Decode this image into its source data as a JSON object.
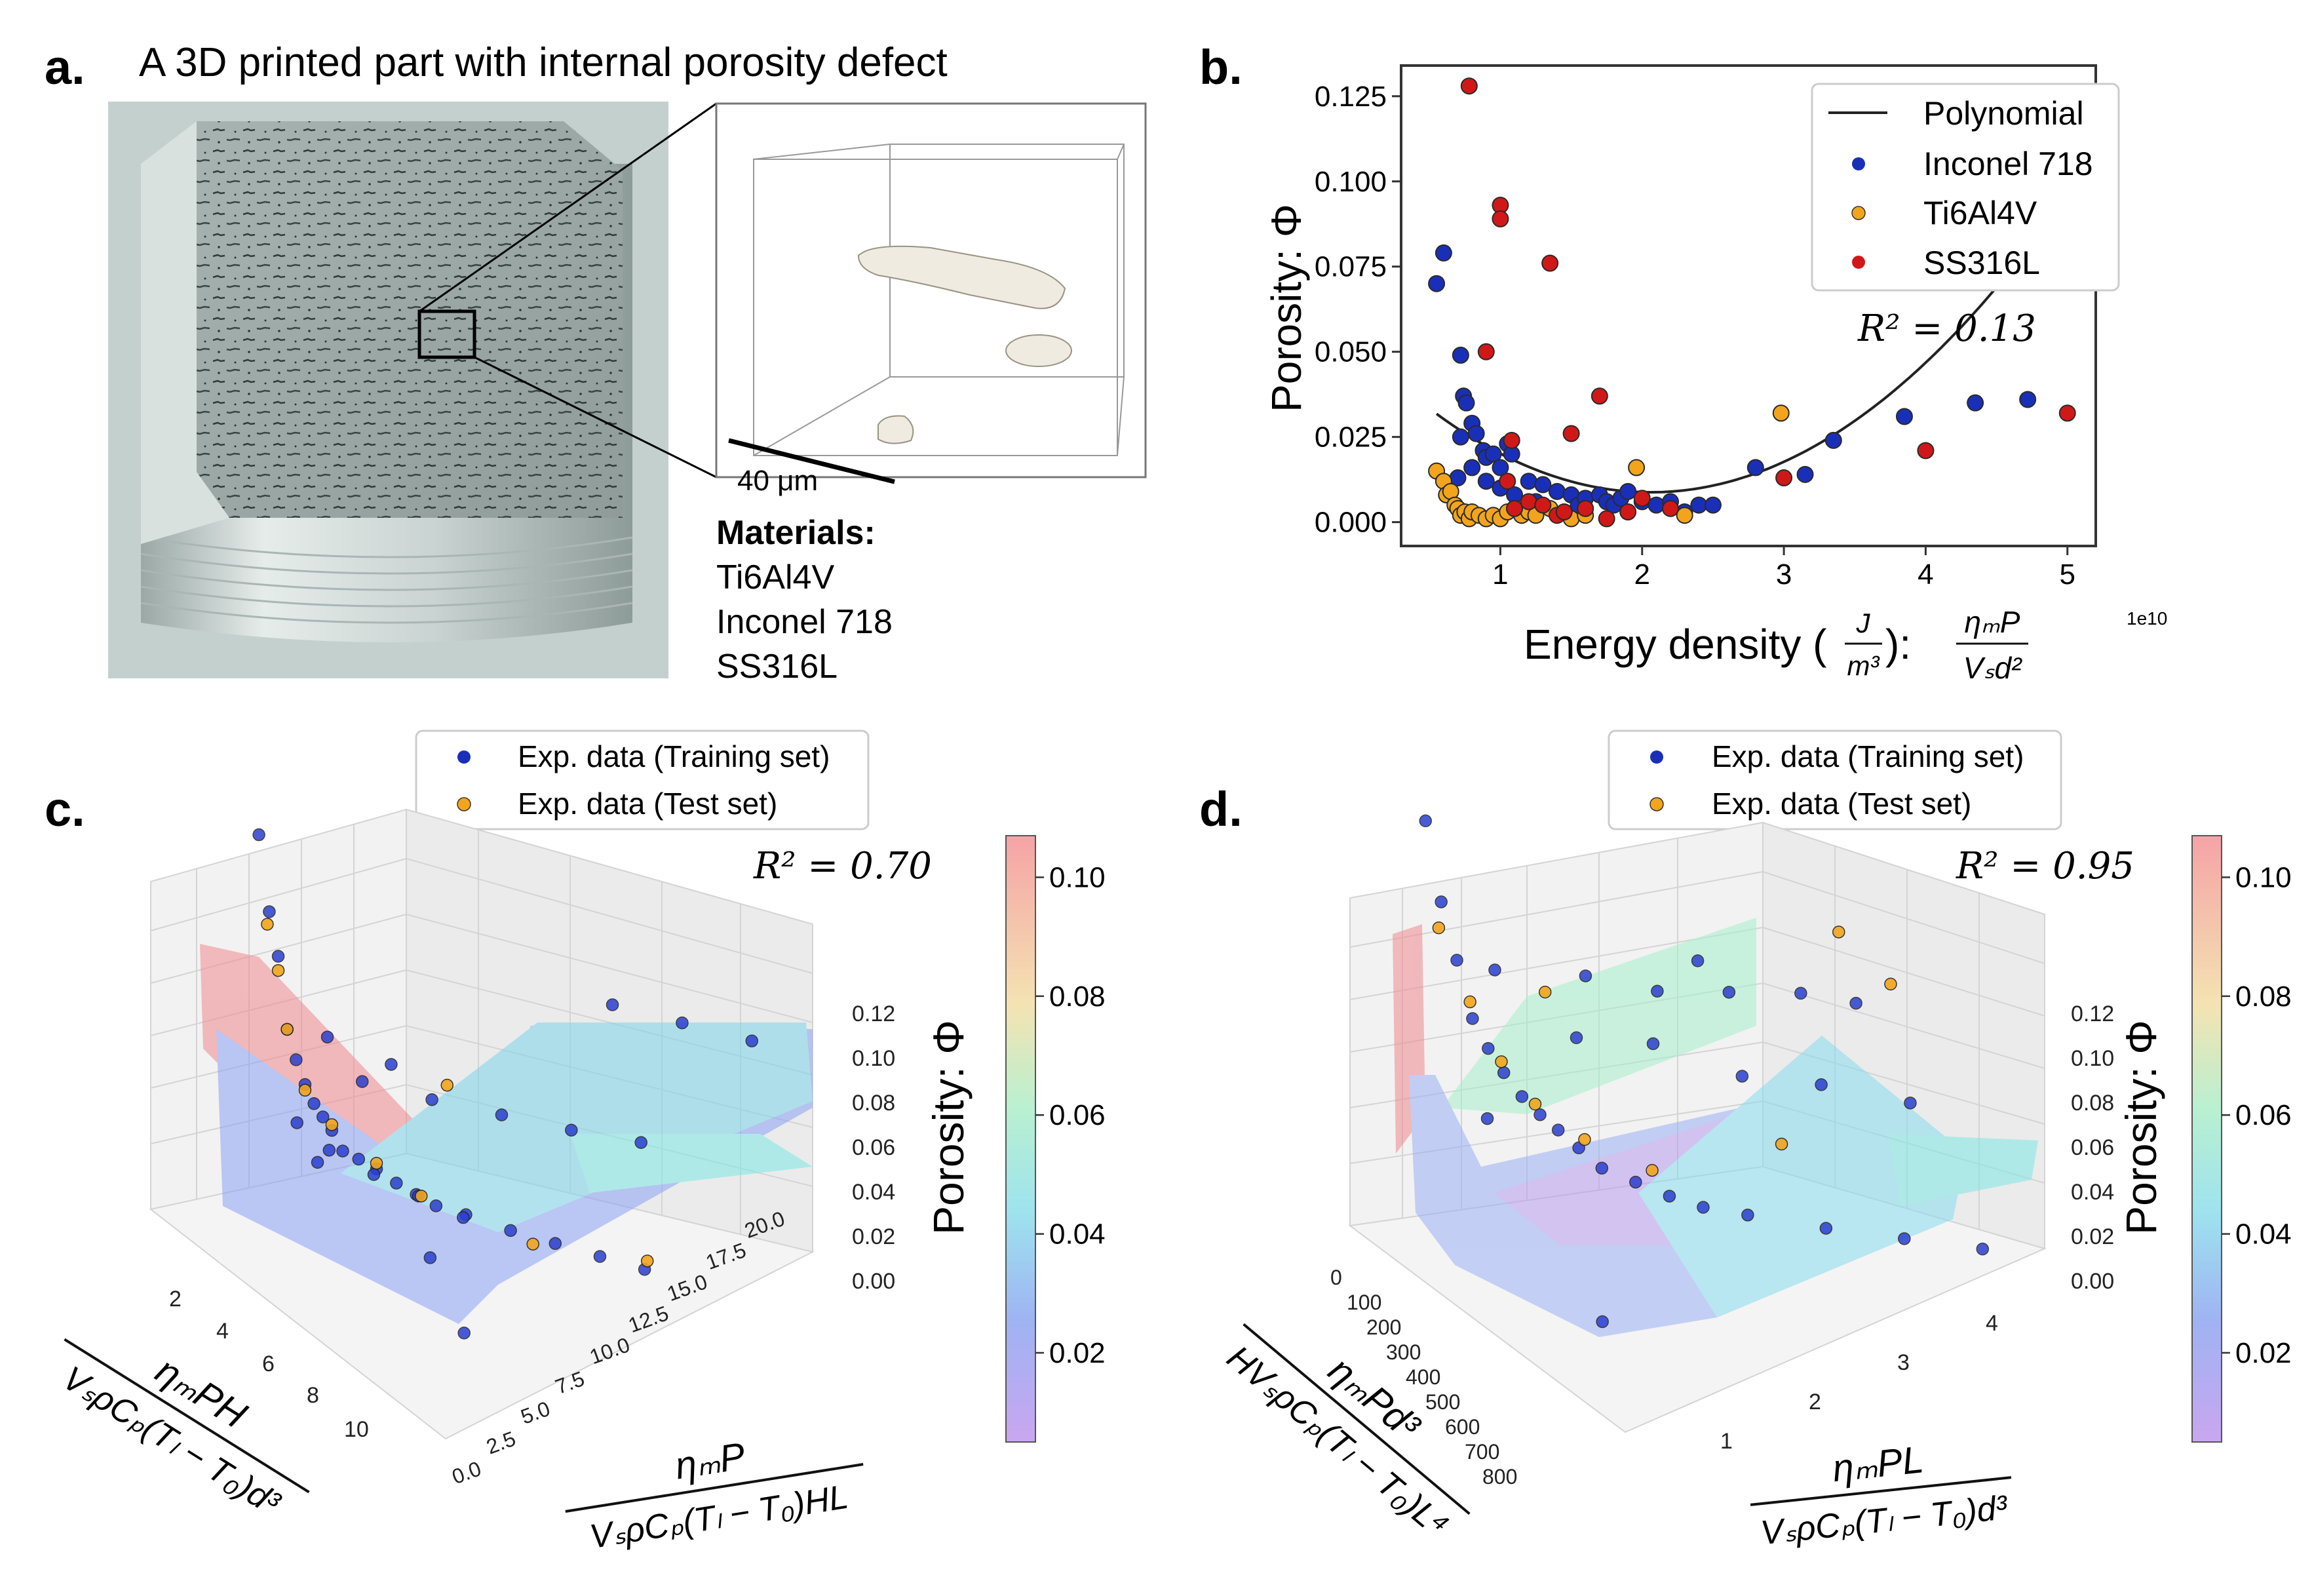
{
  "panel_a": {
    "letter": "a.",
    "title": "A 3D printed part with internal porosity defect",
    "scale_bar": "40  μm",
    "materials_header": "Materials:",
    "materials": [
      "Ti6Al4V",
      "Inconel 718",
      "SS316L"
    ]
  },
  "chart_data": [
    {
      "panel": "b.",
      "type": "scatter",
      "xlabel_prefix": "Energy density (",
      "xlabel_frac_num": "J",
      "xlabel_frac_den": "m³",
      "xlabel_sep": "):",
      "xlabel_expr_num": "ηₘP",
      "xlabel_expr_den": "Vₛd²",
      "x_scale": "1e10",
      "ylabel": "Porosity: Φ",
      "xlim": [
        0.3,
        5.2
      ],
      "ylim": [
        -0.007,
        0.134
      ],
      "xticks": [
        "1",
        "2",
        "3",
        "4",
        "5"
      ],
      "xtick_values": [
        1,
        2,
        3,
        4,
        5
      ],
      "yticks": [
        "0.000",
        "0.025",
        "0.050",
        "0.075",
        "0.100",
        "0.125"
      ],
      "ytick_values": [
        0,
        0.025,
        0.05,
        0.075,
        0.1,
        0.125
      ],
      "annotation": "R² = 0.13",
      "legend": [
        "Polynomial",
        "Inconel 718",
        "Ti6Al4V",
        "SS316L"
      ],
      "fit": {
        "name": "Polynomial",
        "color": "#222222",
        "coef": [
          0.0516,
          -0.0416,
          0.0101
        ],
        "x_range": [
          0.55,
          5.0
        ]
      },
      "series": [
        {
          "name": "Inconel 718",
          "color": "#1a2fb8",
          "points": [
            [
              0.55,
              0.07
            ],
            [
              0.6,
              0.079
            ],
            [
              0.72,
              0.049
            ],
            [
              0.74,
              0.037
            ],
            [
              0.76,
              0.035
            ],
            [
              0.8,
              0.029
            ],
            [
              0.83,
              0.026
            ],
            [
              0.72,
              0.025
            ],
            [
              0.88,
              0.021
            ],
            [
              0.9,
              0.019
            ],
            [
              0.95,
              0.02
            ],
            [
              1.0,
              0.016
            ],
            [
              1.05,
              0.023
            ],
            [
              1.08,
              0.02
            ],
            [
              0.7,
              0.013
            ],
            [
              0.8,
              0.016
            ],
            [
              0.9,
              0.012
            ],
            [
              1.0,
              0.01
            ],
            [
              1.1,
              0.008
            ],
            [
              1.2,
              0.012
            ],
            [
              1.25,
              0.006
            ],
            [
              1.3,
              0.011
            ],
            [
              1.4,
              0.009
            ],
            [
              1.5,
              0.008
            ],
            [
              1.55,
              0.005
            ],
            [
              1.6,
              0.007
            ],
            [
              1.7,
              0.008
            ],
            [
              1.75,
              0.006
            ],
            [
              1.8,
              0.005
            ],
            [
              1.85,
              0.007
            ],
            [
              1.9,
              0.009
            ],
            [
              2.0,
              0.006
            ],
            [
              2.1,
              0.005
            ],
            [
              2.2,
              0.006
            ],
            [
              2.3,
              0.003
            ],
            [
              2.4,
              0.005
            ],
            [
              2.5,
              0.005
            ],
            [
              2.8,
              0.016
            ],
            [
              3.15,
              0.014
            ],
            [
              3.35,
              0.024
            ],
            [
              3.85,
              0.031
            ],
            [
              4.35,
              0.035
            ],
            [
              4.72,
              0.036
            ]
          ]
        },
        {
          "name": "Ti6Al4V",
          "color": "#f2a51c",
          "points": [
            [
              0.55,
              0.015
            ],
            [
              0.6,
              0.012
            ],
            [
              0.62,
              0.008
            ],
            [
              0.65,
              0.009
            ],
            [
              0.68,
              0.005
            ],
            [
              0.7,
              0.004
            ],
            [
              0.72,
              0.002
            ],
            [
              0.75,
              0.003
            ],
            [
              0.78,
              0.001
            ],
            [
              0.8,
              0.003
            ],
            [
              0.85,
              0.002
            ],
            [
              0.9,
              0.001
            ],
            [
              0.95,
              0.002
            ],
            [
              1.0,
              0.001
            ],
            [
              1.05,
              0.003
            ],
            [
              1.1,
              0.004
            ],
            [
              1.15,
              0.002
            ],
            [
              1.2,
              0.003
            ],
            [
              1.25,
              0.002
            ],
            [
              1.35,
              0.004
            ],
            [
              1.5,
              0.001
            ],
            [
              1.6,
              0.002
            ],
            [
              1.96,
              0.016
            ],
            [
              2.98,
              0.032
            ],
            [
              2.3,
              0.002
            ]
          ]
        },
        {
          "name": "SS316L",
          "color": "#d11818",
          "points": [
            [
              0.78,
              0.128
            ],
            [
              1.0,
              0.093
            ],
            [
              1.0,
              0.089
            ],
            [
              0.9,
              0.05
            ],
            [
              1.35,
              0.076
            ],
            [
              1.08,
              0.024
            ],
            [
              1.5,
              0.026
            ],
            [
              1.7,
              0.037
            ],
            [
              1.05,
              0.012
            ],
            [
              1.1,
              0.004
            ],
            [
              1.2,
              0.006
            ],
            [
              1.3,
              0.005
            ],
            [
              1.4,
              0.002
            ],
            [
              1.45,
              0.003
            ],
            [
              1.6,
              0.004
            ],
            [
              1.75,
              0.001
            ],
            [
              1.9,
              0.003
            ],
            [
              2.0,
              0.007
            ],
            [
              2.2,
              0.004
            ],
            [
              3.0,
              0.013
            ],
            [
              4.0,
              0.021
            ],
            [
              5.0,
              0.032
            ]
          ]
        }
      ]
    },
    {
      "panel": "c.",
      "type": "scatter3d",
      "legend": [
        "Exp. data (Training set)",
        "Exp. data (Test set)"
      ],
      "annotation": "R² = 0.70",
      "zlabel": "Porosity: Φ",
      "zticks": [
        "0.12",
        "0.10",
        "0.08",
        "0.06",
        "0.04",
        "0.02",
        "0.00"
      ],
      "zlim": [
        0,
        0.12
      ],
      "xticks": [
        "2",
        "4",
        "6",
        "8",
        "10"
      ],
      "xlim": [
        0,
        12
      ],
      "xlabel_num": "ηₘPH",
      "xlabel_den": "VₛρCₚ(Tₗ − T₀)d³",
      "yticks": [
        "0.0",
        "2.5",
        "5.0",
        "7.5",
        "10.0",
        "12.5",
        "15.0",
        "17.5",
        "20.0"
      ],
      "ylim": [
        0,
        22
      ],
      "ylabel_num": "ηₘP",
      "ylabel_den": "VₛρCₚ(Tₗ − T₀)HL",
      "colorbar_ticks": [
        "0.10",
        "0.08",
        "0.06",
        "0.04",
        "0.02"
      ],
      "colorbar_range": [
        0.005,
        0.107
      ],
      "train_points": [
        [
          1.2,
          0.5,
          0.125
        ],
        [
          1.6,
          0.6,
          0.1
        ],
        [
          1.8,
          0.8,
          0.085
        ],
        [
          2.0,
          1.0,
          0.06
        ],
        [
          2.2,
          1.2,
          0.05
        ],
        [
          2.4,
          1.4,
          0.042
        ],
        [
          2.6,
          1.6,
          0.036
        ],
        [
          2.8,
          1.8,
          0.032
        ],
        [
          3.0,
          2.0,
          0.028
        ],
        [
          3.3,
          2.2,
          0.022
        ],
        [
          3.6,
          2.6,
          0.02
        ],
        [
          4.0,
          3.0,
          0.018
        ],
        [
          4.5,
          3.4,
          0.015
        ],
        [
          5.0,
          3.8,
          0.013
        ],
        [
          5.5,
          4.2,
          0.011
        ],
        [
          6.0,
          5.0,
          0.009
        ],
        [
          7.0,
          6.0,
          0.007
        ],
        [
          8.0,
          7.0,
          0.006
        ],
        [
          9.0,
          8.0,
          0.005
        ],
        [
          10.0,
          9.0,
          0.004
        ],
        [
          2.5,
          1.0,
          0.03
        ],
        [
          3.5,
          1.5,
          0.025
        ],
        [
          4.5,
          2.5,
          0.02
        ],
        [
          5.5,
          3.5,
          0.016
        ],
        [
          6.5,
          4.5,
          0.012
        ],
        [
          2.0,
          4.0,
          0.035
        ],
        [
          3.0,
          6.0,
          0.03
        ],
        [
          4.0,
          8.0,
          0.026
        ],
        [
          5.0,
          10.0,
          0.022
        ],
        [
          6.0,
          12.0,
          0.019
        ],
        [
          2.0,
          14.0,
          0.04
        ],
        [
          3.0,
          16.0,
          0.035
        ],
        [
          4.0,
          18.0,
          0.03
        ],
        [
          1.5,
          3.0,
          0.05
        ],
        [
          2.2,
          5.0,
          0.04
        ],
        [
          11.0,
          1.0,
          0.005
        ],
        [
          8.0,
          2.0,
          0.012
        ],
        [
          3.8,
          0.8,
          0.024
        ]
      ],
      "test_points": [
        [
          1.5,
          0.6,
          0.095
        ],
        [
          1.8,
          0.8,
          0.08
        ],
        [
          2.0,
          1.0,
          0.06
        ],
        [
          2.4,
          1.4,
          0.04
        ],
        [
          3.0,
          2.0,
          0.03
        ],
        [
          4.0,
          3.0,
          0.02
        ],
        [
          5.0,
          4.0,
          0.012
        ],
        [
          7.5,
          6.5,
          0.004
        ],
        [
          2.5,
          7.0,
          0.03
        ],
        [
          9.5,
          9.5,
          0.003
        ]
      ]
    },
    {
      "panel": "d.",
      "type": "scatter3d",
      "legend": [
        "Exp. data (Training set)",
        "Exp. data (Test set)"
      ],
      "annotation": "R² = 0.95",
      "zlabel": "Porosity: Φ",
      "zticks": [
        "0.12",
        "0.10",
        "0.08",
        "0.06",
        "0.04",
        "0.02",
        "0.00"
      ],
      "zlim": [
        0,
        0.12
      ],
      "xticks": [
        "0",
        "100",
        "200",
        "300",
        "400",
        "500",
        "600",
        "700",
        "800"
      ],
      "xlim": [
        0,
        850
      ],
      "xlabel_num": "ηₘPd³",
      "xlabel_den": "HVₛρCₚ(Tₗ − T₀)L⁴",
      "yticks": [
        "1",
        "2",
        "3",
        "4"
      ],
      "ylim": [
        0.4,
        4.8
      ],
      "ylabel_num": "ηₘPL",
      "ylabel_den": "VₛρCₚ(Tₗ − T₀)d³",
      "colorbar_ticks": [
        "0.10",
        "0.08",
        "0.06",
        "0.04",
        "0.02"
      ],
      "colorbar_range": [
        0.005,
        0.107
      ],
      "train_points": [
        [
          20,
          0.6,
          0.128
        ],
        [
          40,
          0.7,
          0.1
        ],
        [
          60,
          0.8,
          0.08
        ],
        [
          80,
          0.9,
          0.06
        ],
        [
          100,
          1.0,
          0.05
        ],
        [
          120,
          1.1,
          0.042
        ],
        [
          150,
          1.2,
          0.035
        ],
        [
          180,
          1.3,
          0.03
        ],
        [
          210,
          1.4,
          0.026
        ],
        [
          250,
          1.5,
          0.022
        ],
        [
          300,
          1.6,
          0.018
        ],
        [
          350,
          1.8,
          0.015
        ],
        [
          400,
          2.0,
          0.012
        ],
        [
          450,
          2.2,
          0.01
        ],
        [
          500,
          2.5,
          0.008
        ],
        [
          600,
          3.0,
          0.006
        ],
        [
          700,
          3.5,
          0.005
        ],
        [
          800,
          4.0,
          0.004
        ],
        [
          60,
          2.0,
          0.06
        ],
        [
          90,
          2.6,
          0.05
        ],
        [
          120,
          3.2,
          0.045
        ],
        [
          150,
          3.8,
          0.04
        ],
        [
          200,
          4.2,
          0.036
        ],
        [
          80,
          3.0,
          0.055
        ],
        [
          110,
          1.8,
          0.045
        ],
        [
          160,
          2.4,
          0.04
        ],
        [
          260,
          3.0,
          0.03
        ],
        [
          320,
          3.6,
          0.025
        ],
        [
          420,
          4.2,
          0.02
        ],
        [
          40,
          1.2,
          0.07
        ],
        [
          650,
          0.8,
          0.004
        ],
        [
          140,
          0.9,
          0.03
        ]
      ],
      "test_points": [
        [
          30,
          0.7,
          0.09
        ],
        [
          70,
          0.9,
          0.065
        ],
        [
          110,
          1.1,
          0.045
        ],
        [
          160,
          1.3,
          0.032
        ],
        [
          230,
          1.6,
          0.022
        ],
        [
          330,
          2.0,
          0.015
        ],
        [
          130,
          4.2,
          0.055
        ],
        [
          210,
          4.5,
          0.04
        ],
        [
          420,
          3.0,
          0.02
        ],
        [
          70,
          1.6,
          0.06
        ]
      ]
    }
  ]
}
